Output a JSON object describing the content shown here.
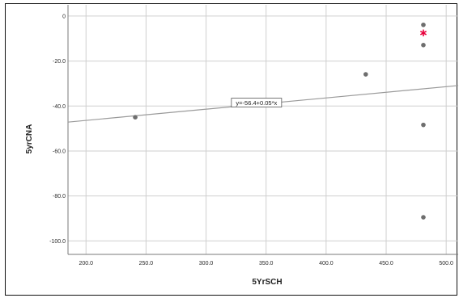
{
  "chart_data": {
    "type": "scatter",
    "title": "",
    "xlabel": "5YrSCH",
    "ylabel": "5yrCNA",
    "xlim": [
      185,
      510
    ],
    "ylim": [
      -106,
      5
    ],
    "x_ticks": [
      200,
      250,
      300,
      350,
      400,
      450,
      500
    ],
    "y_ticks": [
      0,
      -20,
      -40,
      -60,
      -80,
      -100
    ],
    "x_tick_labels": [
      "200.0",
      "250.0",
      "300.0",
      "350.0",
      "400.0",
      "450.0",
      "500.0"
    ],
    "y_tick_labels": [
      "0",
      "-20.0",
      "-40.0",
      "-60.0",
      "-80.0",
      "-100.0"
    ],
    "grid": true,
    "points": [
      {
        "x": 241,
        "y": -45.0
      },
      {
        "x": 433,
        "y": -25.9
      },
      {
        "x": 481,
        "y": -3.9
      },
      {
        "x": 481,
        "y": -12.9
      },
      {
        "x": 481,
        "y": -48.4
      },
      {
        "x": 481,
        "y": -89.5
      }
    ],
    "highlight_points": [
      {
        "x": 481,
        "y": -7.5,
        "marker": "asterisk",
        "color": "#e8003c"
      }
    ],
    "fit_line": {
      "intercept": -56.4,
      "slope": 0.05,
      "label": "y=-56.4+0.05*x",
      "label_anchor": {
        "x": 342,
        "y": -38.5
      }
    },
    "colors": {
      "points": "#6e6e6e",
      "fit_line": "#9a9a9a",
      "grid": "#cfcfcf",
      "highlight": "#e8003c"
    }
  }
}
